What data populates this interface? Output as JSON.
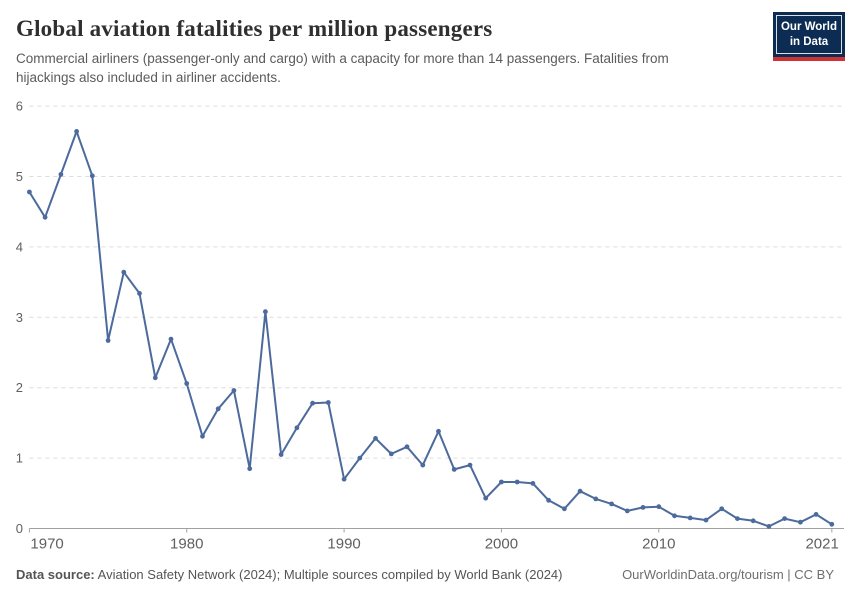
{
  "logo": {
    "line1": "Our World",
    "line2": "in Data"
  },
  "chart_data": {
    "type": "line",
    "title": "Global aviation fatalities per million passengers",
    "subtitle": "Commercial airliners (passenger-only and cargo) with a capacity for more than 14 passengers. Fatalities from hijackings also included in airliner accidents.",
    "xlabel": "",
    "ylabel": "",
    "x": [
      1970,
      1971,
      1972,
      1973,
      1974,
      1975,
      1976,
      1977,
      1978,
      1979,
      1980,
      1981,
      1982,
      1983,
      1984,
      1985,
      1986,
      1987,
      1988,
      1989,
      1990,
      1991,
      1992,
      1993,
      1994,
      1995,
      1996,
      1997,
      1998,
      1999,
      2000,
      2001,
      2002,
      2003,
      2004,
      2005,
      2006,
      2007,
      2008,
      2009,
      2010,
      2011,
      2012,
      2013,
      2014,
      2015,
      2016,
      2017,
      2018,
      2019,
      2020,
      2021
    ],
    "values": [
      4.78,
      4.42,
      5.03,
      5.64,
      5.01,
      2.67,
      3.64,
      3.34,
      2.14,
      2.69,
      2.06,
      1.31,
      1.7,
      1.96,
      0.85,
      3.08,
      1.05,
      1.43,
      1.78,
      1.79,
      0.7,
      1.0,
      1.28,
      1.06,
      1.16,
      0.9,
      1.38,
      0.84,
      0.9,
      0.43,
      0.66,
      0.66,
      0.64,
      0.4,
      0.28,
      0.53,
      0.42,
      0.35,
      0.25,
      0.3,
      0.31,
      0.18,
      0.15,
      0.12,
      0.28,
      0.14,
      0.11,
      0.03,
      0.14,
      0.09,
      0.2,
      0.06
    ],
    "ylim": [
      0,
      6
    ],
    "yticks": [
      0,
      1,
      2,
      3,
      4,
      5,
      6
    ],
    "xticks": [
      1970,
      1980,
      1990,
      2000,
      2010,
      2021
    ],
    "grid": "horizontal-dashed",
    "legend": "none",
    "line_color": "#4C6A9C",
    "axis_color": "#a1a1a1",
    "grid_color": "#dcdcdc"
  },
  "footer": {
    "source_label": "Data source:",
    "source_text": " Aviation Safety Network (2024); Multiple sources compiled by World Bank (2024)",
    "credit": "OurWorldinData.org/tourism | CC BY"
  }
}
